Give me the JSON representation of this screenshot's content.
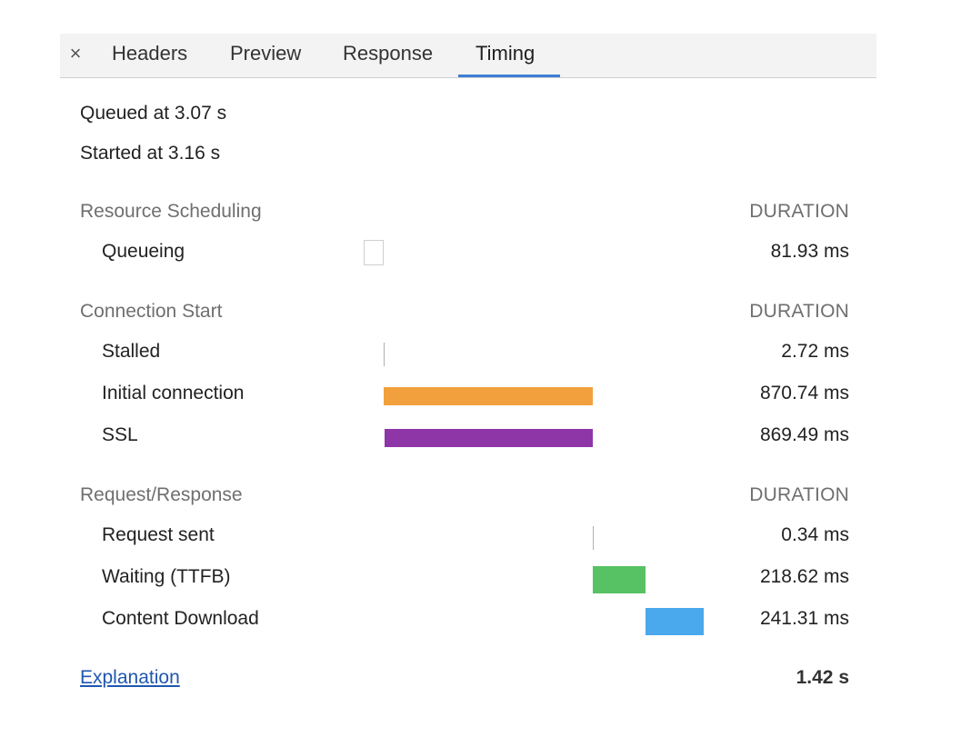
{
  "tabs": {
    "close_glyph": "×",
    "items": [
      "Headers",
      "Preview",
      "Response",
      "Timing"
    ],
    "active": "Timing"
  },
  "queued_text": "Queued at 3.07 s",
  "started_text": "Started at 3.16 s",
  "sections": [
    {
      "title": "Resource Scheduling",
      "duration_header": "DURATION",
      "rows": [
        {
          "label": "Queueing",
          "value": "81.93 ms",
          "start_ms": 0,
          "duration_ms": 81.93,
          "color": "#ffffff"
        }
      ]
    },
    {
      "title": "Connection Start",
      "duration_header": "DURATION",
      "rows": [
        {
          "label": "Stalled",
          "value": "2.72 ms",
          "start_ms": 81.93,
          "duration_ms": 2.72,
          "color": "#bdbdbd"
        },
        {
          "label": "Initial connection",
          "value": "870.74 ms",
          "start_ms": 84.65,
          "duration_ms": 870.74,
          "color": "#f2a03d"
        },
        {
          "label": "SSL",
          "value": "869.49 ms",
          "start_ms": 85.9,
          "duration_ms": 869.49,
          "color": "#8e35a7"
        }
      ]
    },
    {
      "title": "Request/Response",
      "duration_header": "DURATION",
      "rows": [
        {
          "label": "Request sent",
          "value": "0.34 ms",
          "start_ms": 955.39,
          "duration_ms": 0.34,
          "color": "#bdbdbd"
        },
        {
          "label": "Waiting (TTFB)",
          "value": "218.62 ms",
          "start_ms": 955.73,
          "duration_ms": 218.62,
          "color": "#57c263"
        },
        {
          "label": "Content Download",
          "value": "241.31 ms",
          "start_ms": 1174.35,
          "duration_ms": 241.31,
          "color": "#4aa8ec"
        }
      ]
    }
  ],
  "explanation_label": "Explanation",
  "total_label": "1.42 s"
}
